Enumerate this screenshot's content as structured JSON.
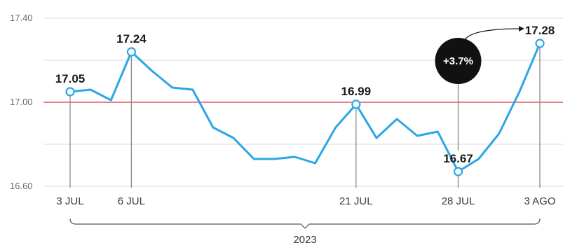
{
  "chart_data": {
    "type": "line",
    "title": "",
    "xlabel": "2023",
    "ylabel": "",
    "ylim": [
      16.6,
      17.4
    ],
    "yticks": [
      "17.40",
      "17.00",
      "16.60"
    ],
    "reference_line": 17.0,
    "x_tick_labels": [
      "3 JUL",
      "6 JUL",
      "21 JUL",
      "28 JUL",
      "3 AGO"
    ],
    "series": [
      {
        "values": [
          17.05,
          17.06,
          17.01,
          17.24,
          17.15,
          17.07,
          17.06,
          16.88,
          16.83,
          16.73,
          16.73,
          16.74,
          16.71,
          16.88,
          16.99,
          16.83,
          16.92,
          16.84,
          16.86,
          16.67,
          16.73,
          16.85,
          17.05,
          17.28
        ]
      }
    ],
    "labeled_points": [
      {
        "index": 0,
        "label": "17.05"
      },
      {
        "index": 3,
        "label": "17.24"
      },
      {
        "index": 14,
        "label": "16.99"
      },
      {
        "index": 19,
        "label": "16.67"
      },
      {
        "index": 23,
        "label": "17.28"
      }
    ],
    "x_tick_indices": [
      0,
      3,
      14,
      19,
      23
    ],
    "annotation": "+3.7%",
    "colors": {
      "line": "#2ca6e6",
      "reference": "#e7838d",
      "grid": "#d8d8d8",
      "badge": "#111111"
    }
  }
}
